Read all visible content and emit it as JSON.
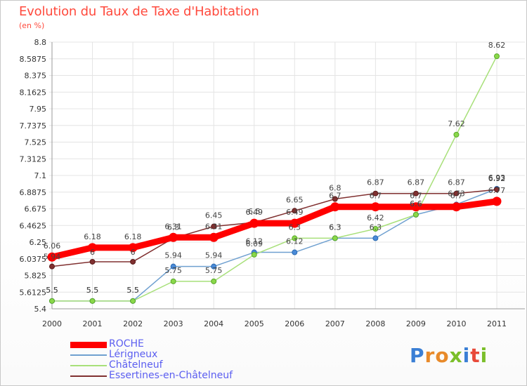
{
  "header": {
    "title": "Evolution du Taux de Taxe d'Habitation",
    "subtitle": "(en %)"
  },
  "logo": {
    "text": [
      "P",
      "r",
      "o",
      "x",
      "i",
      "t",
      "i"
    ],
    "colors": [
      "#3a7fd5",
      "#e88a2a",
      "#e88a2a",
      "#7bbf2a",
      "#3a7fd5",
      "#e84a3a",
      "#7bbf2a"
    ]
  },
  "chart_data": {
    "type": "line",
    "title": "Evolution du Taux de Taxe d'Habitation",
    "ylabel": "(en %)",
    "xlabel": "",
    "x": [
      "2000",
      "2001",
      "2002",
      "2003",
      "2004",
      "2005",
      "2006",
      "2007",
      "2008",
      "2009",
      "2010",
      "2011"
    ],
    "ylim": [
      5.4,
      8.8
    ],
    "yticks": [
      "5.4",
      "5.6125",
      "5.825",
      "6.0375",
      "6.25",
      "6.4625",
      "6.675",
      "6.8875",
      "7.1",
      "7.3125",
      "7.525",
      "7.7375",
      "7.95",
      "8.1625",
      "8.375",
      "8.5875",
      "8.8"
    ],
    "grid": true,
    "legend_position": "bottom-left",
    "series": [
      {
        "name": "ROCHE",
        "color": "#ff0000",
        "values": [
          6.06,
          6.18,
          6.18,
          6.31,
          6.31,
          6.49,
          6.49,
          6.7,
          6.7,
          6.7,
          6.7,
          6.77
        ],
        "labels": [
          "6.06",
          "6.18",
          "6.18",
          "6.31",
          "6.31",
          "6.49",
          "6.49",
          "6.7",
          "6.7",
          "6.7",
          "6.7",
          "6.77"
        ]
      },
      {
        "name": "Lérigneux",
        "color": "#6fa0d0",
        "values": [
          5.5,
          5.5,
          5.5,
          5.94,
          5.94,
          6.12,
          6.12,
          6.3,
          6.3,
          6.6,
          6.73,
          6.93
        ],
        "labels": [
          "5.5",
          "5.5",
          "5.5",
          "5.94",
          "5.94",
          "6.12",
          "6.12",
          "6.3",
          "6.3",
          "6.6",
          "6.73",
          "6.93"
        ]
      },
      {
        "name": "Châtelneuf",
        "color": "#a8e07a",
        "values": [
          5.5,
          5.5,
          5.5,
          5.75,
          5.75,
          6.09,
          6.3,
          6.3,
          6.42,
          6.6,
          7.62,
          8.62
        ],
        "labels": [
          "5.5",
          "5.5",
          "5.5",
          "5.75",
          "5.75",
          "6.09",
          "6.3",
          "6.3",
          "6.42",
          "6.6",
          "7.62",
          "8.62"
        ]
      },
      {
        "name": "Essertines-en-Châtelneuf",
        "color": "#803030",
        "values": [
          5.94,
          6.0,
          6.0,
          6.3,
          6.45,
          6.5,
          6.65,
          6.8,
          6.87,
          6.87,
          6.87,
          6.92
        ],
        "labels": [
          "5.94",
          "6",
          "6",
          "6.3",
          "6.45",
          "6.5",
          "6.65",
          "6.8",
          "6.87",
          "6.87",
          "6.87",
          "6.92"
        ]
      }
    ]
  }
}
